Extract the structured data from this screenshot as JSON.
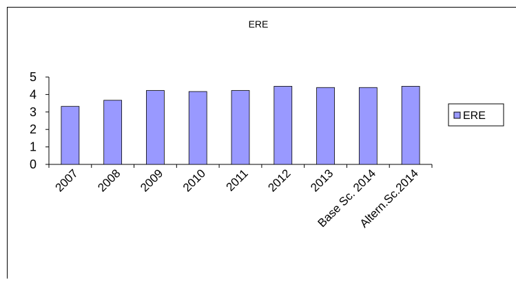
{
  "chart_data": {
    "type": "bar",
    "title": "ERE",
    "categories": [
      "2007",
      "2008",
      "2009",
      "2010",
      "2011",
      "2012",
      "2013",
      "Base Sc. 2014",
      "Altern.Sc.2014"
    ],
    "series": [
      {
        "name": "ERE",
        "color": "#9999ff",
        "values": [
          3.32,
          3.67,
          4.23,
          4.17,
          4.23,
          4.47,
          4.4,
          4.4,
          4.47
        ]
      }
    ],
    "ylim": [
      0,
      5
    ],
    "yticks": [
      0,
      1,
      2,
      3,
      4,
      5
    ],
    "legend": "right"
  }
}
